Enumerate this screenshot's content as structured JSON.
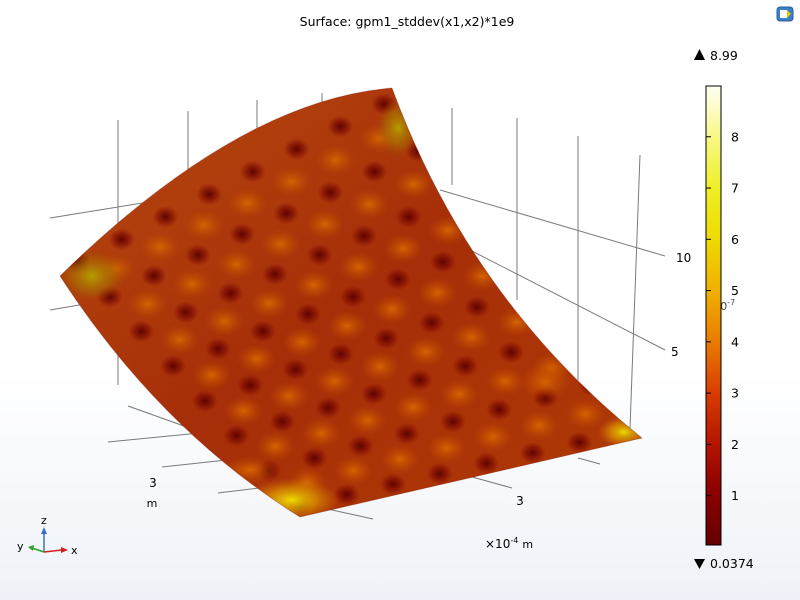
{
  "title": "Surface: gpm1_stddev(x1,x2)*1e9",
  "chart_data": {
    "type": "heatmap",
    "view": "3d-surface",
    "expression": "gpm1_stddev(x1,x2)*1e9",
    "grid": true,
    "x_axis": {
      "ticks": [
        "3"
      ],
      "unit_label": "m",
      "scale_label": "×10",
      "scale_exponent": "-4"
    },
    "y_axis": {
      "ticks": [
        "3"
      ],
      "unit_label": "m"
    },
    "z_axis": {
      "ticks": [
        "5",
        "10"
      ],
      "scale_label": "×10",
      "scale_exponent": "-7"
    },
    "colorbar": {
      "colormap": "heat",
      "ticks": [
        "1",
        "2",
        "3",
        "4",
        "5",
        "6",
        "7",
        "8"
      ],
      "max_label": "8.99",
      "min_label": "0.0374",
      "max": 8.99,
      "min": 0.0374,
      "colors": [
        "#650000",
        "#a80a00",
        "#d23200",
        "#e86e00",
        "#f0a800",
        "#ece000",
        "#f7f55e",
        "#fffff0"
      ],
      "legend_position": "right"
    }
  },
  "axis_triad": {
    "x": "x",
    "y": "y",
    "z": "z"
  },
  "toolbar": {
    "icon": "graphics-toolbar-icon"
  }
}
